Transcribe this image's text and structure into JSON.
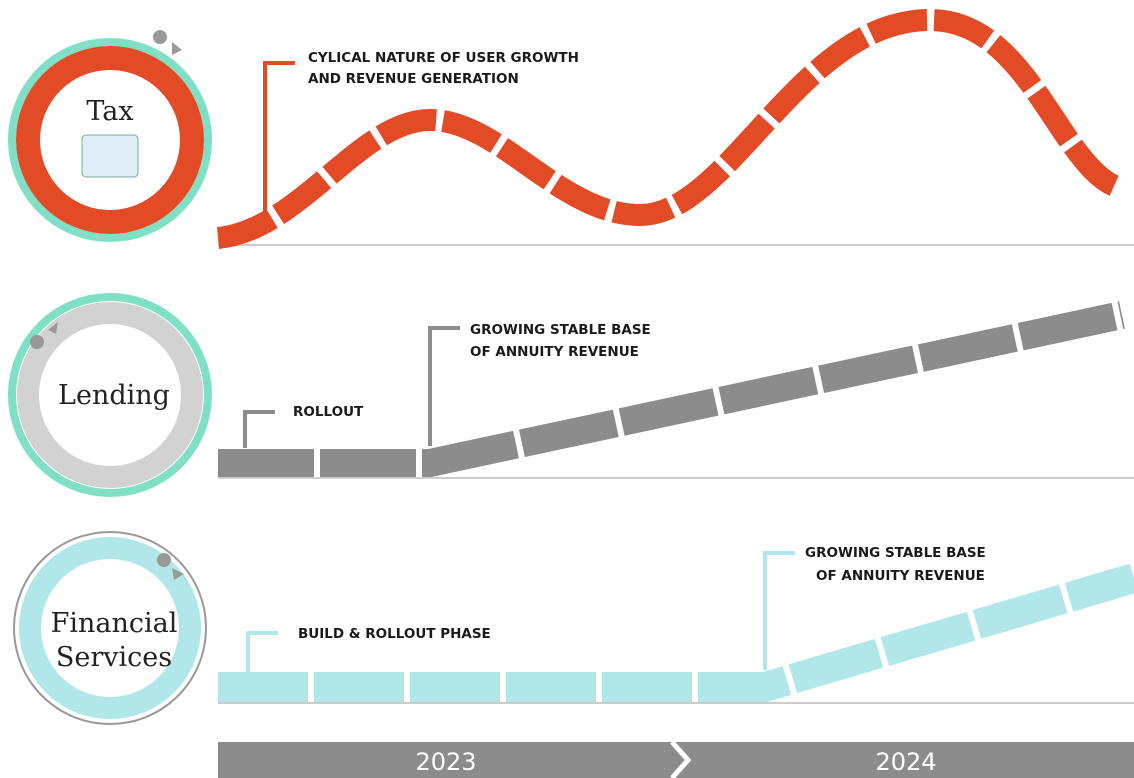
{
  "rows": [
    {
      "label": [
        "Tax"
      ],
      "annotations": [
        {
          "lines": [
            "CYLICAL NATURE OF USER GROWTH",
            "AND REVENUE GENERATION"
          ]
        }
      ]
    },
    {
      "label": [
        "Lending"
      ],
      "annotations": [
        {
          "lines": [
            "ROLLOUT"
          ]
        },
        {
          "lines": [
            "GROWING STABLE BASE",
            "OF ANNUITY REVENUE"
          ]
        }
      ]
    },
    {
      "label": [
        "Financial",
        "Services"
      ],
      "annotations": [
        {
          "lines": [
            "BUILD & ROLLOUT PHASE"
          ]
        },
        {
          "lines": [
            "GROWING STABLE BASE",
            "OF ANNUITY REVENUE"
          ]
        }
      ]
    }
  ],
  "timeline": [
    "2023",
    "2024"
  ]
}
